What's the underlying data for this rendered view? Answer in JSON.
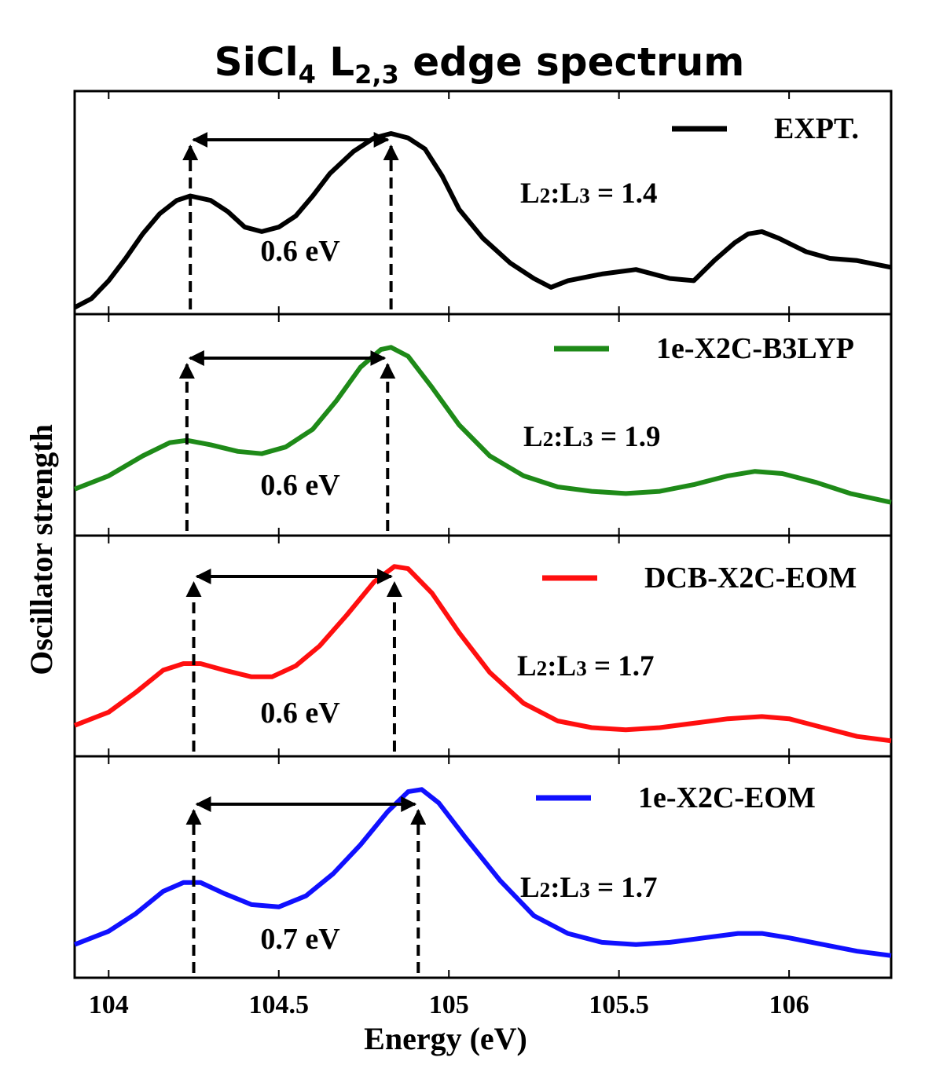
{
  "chart_data": {
    "type": "line",
    "title": "SiCl",
    "title_sub": "4",
    "title_rest": " L",
    "title_edge_sub": "2,3",
    "title_tail": " edge spectrum",
    "xlabel": "Energy (eV)",
    "ylabel": "Oscillator strength",
    "xlim": [
      103.9,
      106.3
    ],
    "x_ticks": [
      104,
      104.5,
      105,
      105.5,
      106
    ],
    "x_tick_labels": [
      "104",
      "104.5",
      "105",
      "105.5",
      "106"
    ],
    "grid": false,
    "legend_placement": "top-right of each panel",
    "panels": [
      {
        "series_name": "EXPT.",
        "color": "#000000",
        "ratio_label": {
          "prefix": "L",
          "sub1": "2",
          "mid": ":L",
          "sub2": "3",
          "suffix": " = 1.4"
        },
        "splitting_label": "0.6 eV",
        "peak_markers": [
          104.24,
          104.83
        ],
        "points": [
          [
            103.9,
            0.03
          ],
          [
            103.95,
            0.07
          ],
          [
            104.0,
            0.15
          ],
          [
            104.05,
            0.25
          ],
          [
            104.1,
            0.36
          ],
          [
            104.15,
            0.45
          ],
          [
            104.2,
            0.51
          ],
          [
            104.24,
            0.53
          ],
          [
            104.3,
            0.51
          ],
          [
            104.35,
            0.46
          ],
          [
            104.4,
            0.39
          ],
          [
            104.45,
            0.37
          ],
          [
            104.5,
            0.39
          ],
          [
            104.55,
            0.44
          ],
          [
            104.6,
            0.53
          ],
          [
            104.65,
            0.63
          ],
          [
            104.72,
            0.73
          ],
          [
            104.78,
            0.79
          ],
          [
            104.83,
            0.81
          ],
          [
            104.88,
            0.79
          ],
          [
            104.93,
            0.74
          ],
          [
            104.98,
            0.62
          ],
          [
            105.03,
            0.47
          ],
          [
            105.1,
            0.34
          ],
          [
            105.18,
            0.23
          ],
          [
            105.25,
            0.16
          ],
          [
            105.3,
            0.12
          ],
          [
            105.35,
            0.15
          ],
          [
            105.45,
            0.18
          ],
          [
            105.55,
            0.2
          ],
          [
            105.65,
            0.16
          ],
          [
            105.72,
            0.15
          ],
          [
            105.78,
            0.24
          ],
          [
            105.84,
            0.32
          ],
          [
            105.88,
            0.36
          ],
          [
            105.92,
            0.37
          ],
          [
            105.97,
            0.34
          ],
          [
            106.05,
            0.28
          ],
          [
            106.12,
            0.25
          ],
          [
            106.2,
            0.24
          ],
          [
            106.3,
            0.21
          ]
        ]
      },
      {
        "series_name": "1e-X2C-B3LYP",
        "color": "#1e8a18",
        "ratio_label": {
          "prefix": "L",
          "sub1": "2",
          "mid": ":L",
          "sub2": "3",
          "suffix": " = 1.9"
        },
        "splitting_label": "0.6 eV",
        "peak_markers": [
          104.23,
          104.82
        ],
        "points": [
          [
            103.9,
            0.21
          ],
          [
            104.0,
            0.27
          ],
          [
            104.1,
            0.36
          ],
          [
            104.18,
            0.42
          ],
          [
            104.23,
            0.43
          ],
          [
            104.3,
            0.41
          ],
          [
            104.38,
            0.38
          ],
          [
            104.45,
            0.37
          ],
          [
            104.52,
            0.4
          ],
          [
            104.6,
            0.48
          ],
          [
            104.67,
            0.61
          ],
          [
            104.74,
            0.76
          ],
          [
            104.8,
            0.84
          ],
          [
            104.83,
            0.85
          ],
          [
            104.88,
            0.81
          ],
          [
            104.95,
            0.67
          ],
          [
            105.03,
            0.5
          ],
          [
            105.12,
            0.36
          ],
          [
            105.22,
            0.27
          ],
          [
            105.32,
            0.22
          ],
          [
            105.42,
            0.2
          ],
          [
            105.52,
            0.19
          ],
          [
            105.62,
            0.2
          ],
          [
            105.72,
            0.23
          ],
          [
            105.82,
            0.27
          ],
          [
            105.9,
            0.29
          ],
          [
            105.98,
            0.28
          ],
          [
            106.08,
            0.24
          ],
          [
            106.18,
            0.19
          ],
          [
            106.3,
            0.15
          ]
        ]
      },
      {
        "series_name": "DCB-X2C-EOM",
        "color": "#ff0f0f",
        "ratio_label": {
          "prefix": "L",
          "sub1": "2",
          "mid": ":L",
          "sub2": "3",
          "suffix": " = 1.7"
        },
        "splitting_label": "0.6 eV",
        "peak_markers": [
          104.25,
          104.84
        ],
        "points": [
          [
            103.9,
            0.14
          ],
          [
            104.0,
            0.2
          ],
          [
            104.08,
            0.29
          ],
          [
            104.16,
            0.39
          ],
          [
            104.22,
            0.42
          ],
          [
            104.27,
            0.42
          ],
          [
            104.34,
            0.39
          ],
          [
            104.42,
            0.36
          ],
          [
            104.48,
            0.36
          ],
          [
            104.55,
            0.41
          ],
          [
            104.62,
            0.5
          ],
          [
            104.7,
            0.64
          ],
          [
            104.78,
            0.79
          ],
          [
            104.84,
            0.86
          ],
          [
            104.88,
            0.85
          ],
          [
            104.95,
            0.74
          ],
          [
            105.03,
            0.56
          ],
          [
            105.12,
            0.38
          ],
          [
            105.22,
            0.24
          ],
          [
            105.32,
            0.16
          ],
          [
            105.42,
            0.13
          ],
          [
            105.52,
            0.12
          ],
          [
            105.62,
            0.13
          ],
          [
            105.72,
            0.15
          ],
          [
            105.82,
            0.17
          ],
          [
            105.92,
            0.18
          ],
          [
            106.0,
            0.17
          ],
          [
            106.1,
            0.13
          ],
          [
            106.2,
            0.09
          ],
          [
            106.3,
            0.07
          ]
        ]
      },
      {
        "series_name": "1e-X2C-EOM",
        "color": "#1010ff",
        "ratio_label": {
          "prefix": "L",
          "sub1": "2",
          "mid": ":L",
          "sub2": "3",
          "suffix": " = 1.7"
        },
        "splitting_label": "0.7 eV",
        "peak_markers": [
          104.25,
          104.91
        ],
        "points": [
          [
            103.9,
            0.15
          ],
          [
            104.0,
            0.21
          ],
          [
            104.08,
            0.29
          ],
          [
            104.16,
            0.39
          ],
          [
            104.22,
            0.43
          ],
          [
            104.27,
            0.43
          ],
          [
            104.34,
            0.38
          ],
          [
            104.42,
            0.33
          ],
          [
            104.5,
            0.32
          ],
          [
            104.58,
            0.37
          ],
          [
            104.66,
            0.47
          ],
          [
            104.74,
            0.6
          ],
          [
            104.82,
            0.75
          ],
          [
            104.88,
            0.84
          ],
          [
            104.92,
            0.85
          ],
          [
            104.97,
            0.79
          ],
          [
            105.05,
            0.63
          ],
          [
            105.15,
            0.44
          ],
          [
            105.25,
            0.28
          ],
          [
            105.35,
            0.2
          ],
          [
            105.45,
            0.16
          ],
          [
            105.55,
            0.15
          ],
          [
            105.65,
            0.16
          ],
          [
            105.75,
            0.18
          ],
          [
            105.85,
            0.2
          ],
          [
            105.92,
            0.2
          ],
          [
            106.0,
            0.18
          ],
          [
            106.1,
            0.15
          ],
          [
            106.2,
            0.12
          ],
          [
            106.3,
            0.1
          ]
        ]
      }
    ]
  }
}
